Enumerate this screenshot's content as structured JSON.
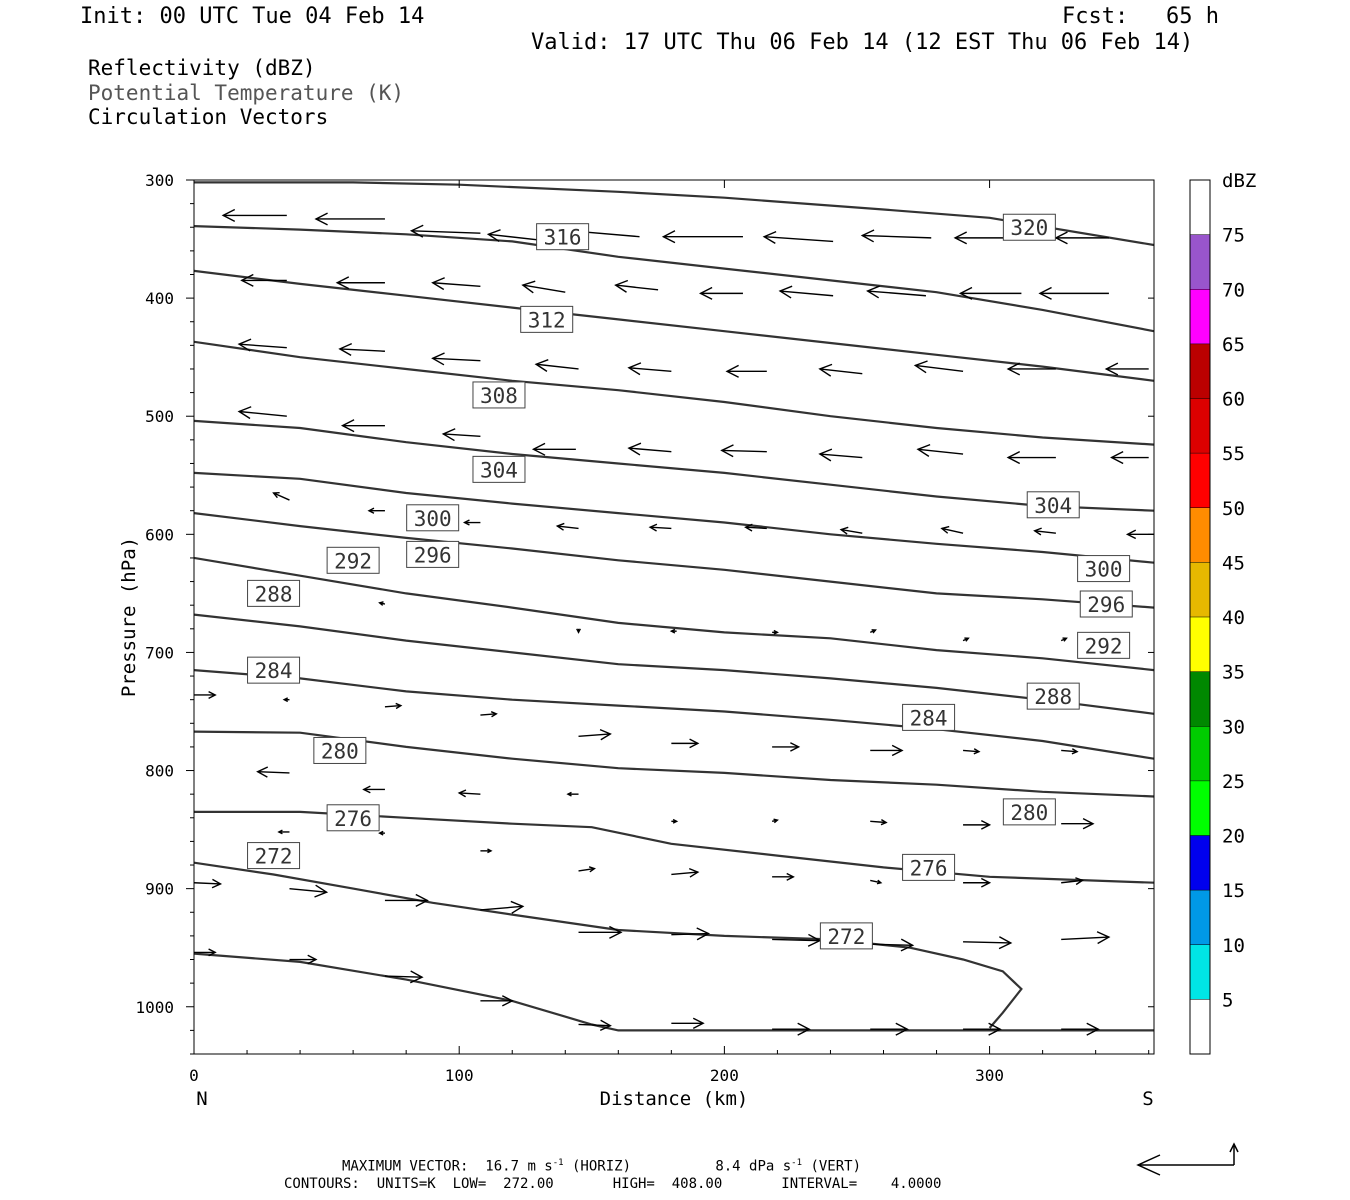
{
  "header": {
    "init": "Init: 00 UTC Tue 04 Feb 14",
    "fcst_label": "Fcst:",
    "fcst_value": "65 h",
    "valid": "Valid: 17 UTC Thu 06 Feb 14 (12 EST Thu 06 Feb 14)"
  },
  "fields": {
    "reflectivity": "Reflectivity (dBZ)",
    "theta": "Potential Temperature (K)",
    "vectors": "Circulation Vectors"
  },
  "axes": {
    "ylabel": "Pressure (hPa)",
    "xlabel": "Distance (km)",
    "left_end": "N",
    "right_end": "S",
    "y_ticks": [
      300,
      400,
      500,
      600,
      700,
      800,
      900,
      1000
    ],
    "x_ticks": [
      0,
      100,
      200,
      300
    ]
  },
  "colorbar": {
    "title": "dBZ",
    "labels": [
      5,
      10,
      15,
      20,
      25,
      30,
      35,
      40,
      45,
      50,
      55,
      60,
      65,
      70,
      75
    ],
    "colors": [
      "#00e5e5",
      "#0099e6",
      "#0000ee",
      "#00ff00",
      "#00cc00",
      "#008800",
      "#ffff00",
      "#e6b800",
      "#ff8c00",
      "#ff0000",
      "#dd0000",
      "#bb0000",
      "#ff00ff",
      "#9955cc"
    ]
  },
  "footer": {
    "max_label": "MAXIMUM VECTOR:",
    "horiz_value": "16.7 m s",
    "horiz_suffix": " (HORIZ)",
    "vert_value": "8.4 dPa s",
    "vert_suffix": " (VERT)",
    "exponent": "-1",
    "contours": "CONTOURS:  UNITS=K  LOW=  272.00       HIGH=  408.00       INTERVAL=    4.0000"
  },
  "chart_data": {
    "type": "line",
    "x_range": [
      0,
      362
    ],
    "p_range": [
      300,
      1040
    ],
    "y_scale": "linear pressure, inverted",
    "contours": [
      {
        "label": "272",
        "pts": [
          [
            0,
            955
          ],
          [
            40,
            962
          ],
          [
            80,
            977
          ],
          [
            120,
            995
          ],
          [
            150,
            1015
          ],
          [
            160,
            1020
          ],
          [
            362,
            1020
          ]
        ],
        "labels": []
      },
      {
        "label": "272",
        "pts": [
          [
            0,
            878
          ],
          [
            30,
            888
          ],
          [
            60,
            900
          ],
          [
            90,
            912
          ],
          [
            120,
            922
          ],
          [
            160,
            935
          ],
          [
            200,
            940
          ],
          [
            240,
            943
          ],
          [
            270,
            950
          ],
          [
            290,
            960
          ],
          [
            305,
            970
          ],
          [
            312,
            985
          ],
          [
            305,
            1005
          ],
          [
            300,
            1018
          ]
        ],
        "labels": [
          [
            30,
            872
          ],
          [
            246,
            940
          ]
        ]
      },
      {
        "label": "276",
        "pts": [
          [
            0,
            835
          ],
          [
            40,
            835
          ],
          [
            80,
            840
          ],
          [
            120,
            845
          ],
          [
            150,
            848
          ],
          [
            180,
            862
          ],
          [
            220,
            872
          ],
          [
            260,
            882
          ],
          [
            300,
            890
          ],
          [
            362,
            895
          ]
        ],
        "labels": [
          [
            60,
            840
          ],
          [
            277,
            882
          ]
        ]
      },
      {
        "label": "280",
        "pts": [
          [
            0,
            767
          ],
          [
            40,
            768
          ],
          [
            80,
            780
          ],
          [
            120,
            790
          ],
          [
            160,
            798
          ],
          [
            200,
            802
          ],
          [
            240,
            808
          ],
          [
            280,
            812
          ],
          [
            320,
            818
          ],
          [
            362,
            822
          ]
        ],
        "labels": [
          [
            55,
            783
          ],
          [
            315,
            835
          ]
        ]
      },
      {
        "label": "284",
        "pts": [
          [
            0,
            715
          ],
          [
            40,
            722
          ],
          [
            80,
            733
          ],
          [
            120,
            740
          ],
          [
            160,
            745
          ],
          [
            200,
            750
          ],
          [
            240,
            757
          ],
          [
            280,
            765
          ],
          [
            320,
            775
          ],
          [
            362,
            790
          ]
        ],
        "labels": [
          [
            30,
            715
          ],
          [
            277,
            755
          ]
        ]
      },
      {
        "label": "288",
        "pts": [
          [
            0,
            668
          ],
          [
            40,
            678
          ],
          [
            80,
            690
          ],
          [
            120,
            700
          ],
          [
            160,
            710
          ],
          [
            200,
            715
          ],
          [
            240,
            722
          ],
          [
            280,
            730
          ],
          [
            320,
            740
          ],
          [
            362,
            752
          ]
        ],
        "labels": [
          [
            30,
            650
          ],
          [
            324,
            737
          ]
        ]
      },
      {
        "label": "292",
        "pts": [
          [
            0,
            620
          ],
          [
            40,
            635
          ],
          [
            80,
            650
          ],
          [
            120,
            662
          ],
          [
            160,
            675
          ],
          [
            200,
            683
          ],
          [
            240,
            688
          ],
          [
            280,
            698
          ],
          [
            320,
            705
          ],
          [
            362,
            715
          ]
        ],
        "labels": [
          [
            60,
            622
          ],
          [
            343,
            694
          ]
        ]
      },
      {
        "label": "296",
        "pts": [
          [
            0,
            582
          ],
          [
            40,
            593
          ],
          [
            80,
            603
          ],
          [
            120,
            612
          ],
          [
            160,
            622
          ],
          [
            200,
            630
          ],
          [
            240,
            640
          ],
          [
            280,
            650
          ],
          [
            320,
            655
          ],
          [
            362,
            662
          ]
        ],
        "labels": [
          [
            90,
            617
          ],
          [
            344,
            659
          ]
        ]
      },
      {
        "label": "300",
        "pts": [
          [
            0,
            548
          ],
          [
            40,
            553
          ],
          [
            80,
            565
          ],
          [
            120,
            574
          ],
          [
            160,
            582
          ],
          [
            200,
            590
          ],
          [
            240,
            600
          ],
          [
            280,
            608
          ],
          [
            320,
            615
          ],
          [
            362,
            624
          ]
        ],
        "labels": [
          [
            90,
            586
          ],
          [
            343,
            629
          ]
        ]
      },
      {
        "label": "304",
        "pts": [
          [
            0,
            504
          ],
          [
            40,
            510
          ],
          [
            80,
            522
          ],
          [
            120,
            532
          ],
          [
            160,
            540
          ],
          [
            200,
            548
          ],
          [
            240,
            558
          ],
          [
            280,
            568
          ],
          [
            320,
            576
          ],
          [
            362,
            580
          ]
        ],
        "labels": [
          [
            115,
            545
          ],
          [
            324,
            575
          ]
        ]
      },
      {
        "label": "308",
        "pts": [
          [
            0,
            437
          ],
          [
            40,
            450
          ],
          [
            80,
            460
          ],
          [
            120,
            470
          ],
          [
            160,
            478
          ],
          [
            200,
            488
          ],
          [
            240,
            500
          ],
          [
            280,
            510
          ],
          [
            320,
            518
          ],
          [
            362,
            524
          ]
        ],
        "labels": [
          [
            115,
            482
          ]
        ]
      },
      {
        "label": "312",
        "pts": [
          [
            0,
            377
          ],
          [
            40,
            388
          ],
          [
            80,
            398
          ],
          [
            120,
            408
          ],
          [
            160,
            418
          ],
          [
            200,
            428
          ],
          [
            240,
            438
          ],
          [
            280,
            448
          ],
          [
            320,
            458
          ],
          [
            362,
            470
          ]
        ],
        "labels": [
          [
            133,
            418
          ]
        ]
      },
      {
        "label": "316",
        "pts": [
          [
            0,
            339
          ],
          [
            40,
            342
          ],
          [
            80,
            346
          ],
          [
            120,
            352
          ],
          [
            160,
            365
          ],
          [
            200,
            375
          ],
          [
            240,
            385
          ],
          [
            280,
            395
          ],
          [
            320,
            410
          ],
          [
            362,
            428
          ]
        ],
        "labels": [
          [
            139,
            348
          ]
        ]
      },
      {
        "label": "320",
        "pts": [
          [
            0,
            302
          ],
          [
            60,
            302
          ],
          [
            100,
            304
          ],
          [
            160,
            310
          ],
          [
            200,
            315
          ],
          [
            260,
            325
          ],
          [
            300,
            332
          ],
          [
            362,
            355
          ]
        ],
        "labels": [
          [
            315,
            340
          ]
        ]
      }
    ],
    "vectors": [
      [
        35,
        330,
        -24,
        0
      ],
      [
        72,
        333,
        -26,
        0
      ],
      [
        108,
        345,
        -26,
        -2
      ],
      [
        135,
        352,
        -24,
        -6
      ],
      [
        168,
        348,
        -26,
        -5
      ],
      [
        207,
        348,
        -30,
        0
      ],
      [
        241,
        352,
        -26,
        -4
      ],
      [
        278,
        349,
        -26,
        -2
      ],
      [
        312,
        349,
        -25,
        0
      ],
      [
        345,
        349,
        -20,
        0
      ],
      [
        35,
        385,
        -17,
        0
      ],
      [
        72,
        387,
        -18,
        0
      ],
      [
        108,
        390,
        -18,
        -3
      ],
      [
        140,
        395,
        -16,
        -6
      ],
      [
        175,
        393,
        -16,
        -4
      ],
      [
        207,
        396,
        -16,
        0
      ],
      [
        241,
        398,
        -20,
        -4
      ],
      [
        276,
        398,
        -22,
        -4
      ],
      [
        312,
        396,
        -23,
        0
      ],
      [
        345,
        396,
        -26,
        0
      ],
      [
        35,
        442,
        -18,
        -3
      ],
      [
        72,
        445,
        -17,
        -2
      ],
      [
        108,
        453,
        -18,
        -2
      ],
      [
        145,
        460,
        -16,
        -4
      ],
      [
        180,
        462,
        -16,
        -3
      ],
      [
        216,
        462,
        -15,
        0
      ],
      [
        252,
        464,
        -16,
        -4
      ],
      [
        290,
        462,
        -18,
        -5
      ],
      [
        325,
        460,
        -18,
        0
      ],
      [
        360,
        460,
        -16,
        0
      ],
      [
        35,
        500,
        -18,
        -4
      ],
      [
        72,
        508,
        -16,
        0
      ],
      [
        108,
        517,
        -14,
        -2
      ],
      [
        144,
        528,
        -16,
        0
      ],
      [
        180,
        530,
        -16,
        -3
      ],
      [
        216,
        530,
        -17,
        -1
      ],
      [
        252,
        535,
        -16,
        -3
      ],
      [
        290,
        532,
        -17,
        -4
      ],
      [
        325,
        535,
        -18,
        0
      ],
      [
        360,
        535,
        -14,
        0
      ],
      [
        36,
        571,
        -6,
        -6
      ],
      [
        72,
        580,
        -6,
        0
      ],
      [
        108,
        590,
        -6,
        0
      ],
      [
        145,
        595,
        -8,
        -2
      ],
      [
        180,
        595,
        -8,
        -1
      ],
      [
        216,
        595,
        -8,
        -1
      ],
      [
        252,
        599,
        -8,
        -3
      ],
      [
        290,
        599,
        -8,
        -4
      ],
      [
        325,
        599,
        -8,
        -2
      ],
      [
        362,
        600,
        -10,
        0
      ],
      [
        36,
        655,
        -2,
        -4
      ],
      [
        72,
        659,
        -2,
        -1
      ],
      [
        108,
        681,
        0,
        0
      ],
      [
        145,
        680,
        0,
        3
      ],
      [
        182,
        682,
        -2,
        0
      ],
      [
        218,
        683,
        2,
        0
      ],
      [
        255,
        683,
        2,
        -2
      ],
      [
        290,
        690,
        2,
        -2
      ],
      [
        327,
        690,
        2,
        -2
      ],
      [
        362,
        680,
        0,
        0
      ],
      [
        0,
        736,
        8,
        0
      ],
      [
        36,
        740,
        -2,
        0
      ],
      [
        72,
        746,
        6,
        -1
      ],
      [
        108,
        753,
        6,
        -1
      ],
      [
        145,
        771,
        12,
        -2
      ],
      [
        180,
        777,
        10,
        0
      ],
      [
        218,
        780,
        10,
        0
      ],
      [
        255,
        783,
        12,
        0
      ],
      [
        290,
        783,
        6,
        1
      ],
      [
        327,
        783,
        6,
        1
      ],
      [
        36,
        802,
        -12,
        -1
      ],
      [
        72,
        816,
        -8,
        0
      ],
      [
        108,
        820,
        -8,
        -1
      ],
      [
        145,
        820,
        -4,
        0
      ],
      [
        180,
        843,
        2,
        0
      ],
      [
        218,
        843,
        2,
        -1
      ],
      [
        255,
        843,
        6,
        1
      ],
      [
        290,
        846,
        10,
        0
      ],
      [
        327,
        845,
        12,
        0
      ],
      [
        36,
        852,
        -4,
        0
      ],
      [
        72,
        853,
        -2,
        0
      ],
      [
        108,
        868,
        4,
        0
      ],
      [
        145,
        885,
        6,
        -2
      ],
      [
        180,
        888,
        10,
        -2
      ],
      [
        218,
        890,
        8,
        0
      ],
      [
        255,
        893,
        4,
        2
      ],
      [
        290,
        895,
        10,
        0
      ],
      [
        327,
        895,
        8,
        -2
      ],
      [
        0,
        895,
        10,
        1
      ],
      [
        36,
        900,
        14,
        3
      ],
      [
        72,
        910,
        16,
        0
      ],
      [
        108,
        918,
        16,
        -3
      ],
      [
        145,
        937,
        16,
        0
      ],
      [
        180,
        939,
        14,
        -1
      ],
      [
        218,
        943,
        18,
        1
      ],
      [
        255,
        947,
        16,
        1
      ],
      [
        290,
        945,
        18,
        1
      ],
      [
        327,
        943,
        18,
        -2
      ],
      [
        0,
        954,
        8,
        0
      ],
      [
        36,
        960,
        10,
        0
      ],
      [
        72,
        974,
        14,
        1
      ],
      [
        108,
        995,
        12,
        0
      ],
      [
        145,
        1015,
        12,
        1
      ],
      [
        180,
        1014,
        12,
        0
      ],
      [
        218,
        1019,
        14,
        0
      ],
      [
        255,
        1019,
        14,
        0
      ],
      [
        290,
        1019,
        14,
        0
      ],
      [
        327,
        1019,
        14,
        0
      ]
    ]
  }
}
